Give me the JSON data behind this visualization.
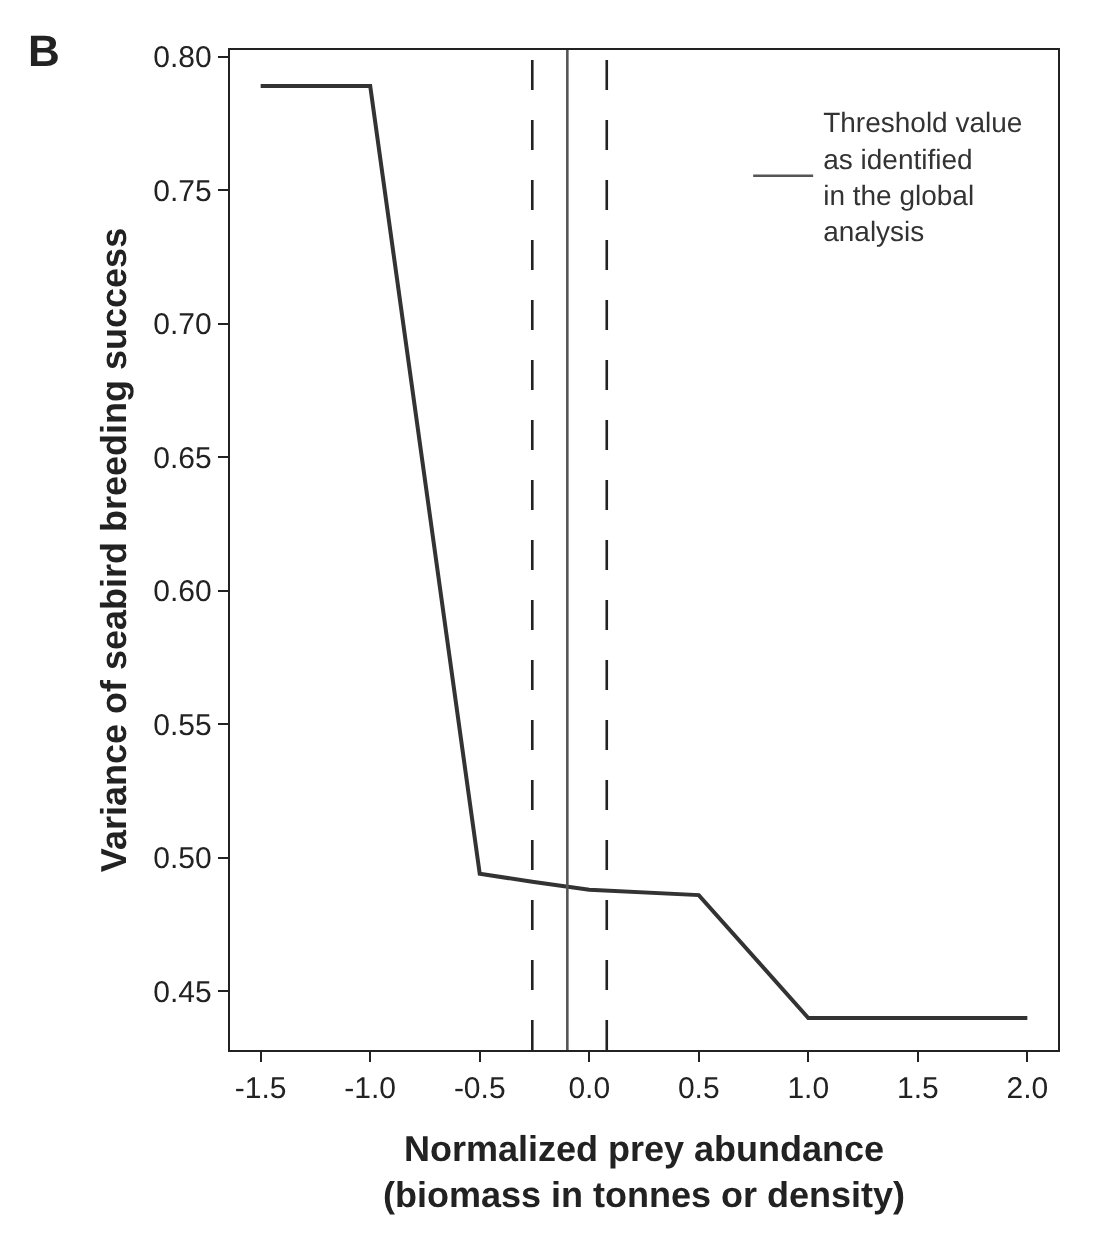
{
  "chart_data": {
    "type": "line",
    "xlabel": "Normalized prey abundance\n(biomass in tonnes or density)",
    "ylabel": "Variance of seabird breeding success",
    "annotations": [
      "B"
    ],
    "x": [
      -1.5,
      -1.0,
      -0.5,
      -0.26,
      0.0,
      0.5,
      1.0,
      2.0
    ],
    "series": [
      {
        "color": "#333333",
        "values": [
          0.789,
          0.789,
          0.494,
          0.491,
          0.488,
          0.486,
          0.44,
          0.44
        ]
      }
    ],
    "xlim": [
      -1.64,
      2.14
    ],
    "xticks": [
      {
        "value": -1.5,
        "label": "-1.5"
      },
      {
        "value": -1.0,
        "label": "-1.0"
      },
      {
        "value": -0.5,
        "label": "-0.5"
      },
      {
        "value": 0.0,
        "label": "0.0"
      },
      {
        "value": 0.5,
        "label": "0.5"
      },
      {
        "value": 1.0,
        "label": "1.0"
      },
      {
        "value": 1.5,
        "label": "1.5"
      },
      {
        "value": 2.0,
        "label": "2.0"
      }
    ],
    "ylim": [
      0.428,
      0.8025
    ],
    "yticks": [
      {
        "value": 0.45,
        "label": "0.45"
      },
      {
        "value": 0.5,
        "label": "0.50"
      },
      {
        "value": 0.55,
        "label": "0.55"
      },
      {
        "value": 0.6,
        "label": "0.60"
      },
      {
        "value": 0.65,
        "label": "0.65"
      },
      {
        "value": 0.7,
        "label": "0.70"
      },
      {
        "value": 0.75,
        "label": "0.75"
      },
      {
        "value": 0.8,
        "label": "0.80"
      }
    ],
    "ref_lines": [
      {
        "axis": "x",
        "value": -0.1,
        "label": "Threshold value\nas identified\nin the global\nanalysis",
        "color": "#555555",
        "line_style": "solid"
      },
      {
        "axis": "x",
        "value": -0.26,
        "color": "#222222",
        "line_style": "dashed"
      },
      {
        "axis": "x",
        "value": 0.08,
        "color": "#222222",
        "line_style": "dashed"
      }
    ],
    "legend": "top right",
    "marker": "none",
    "line_style": "solid"
  }
}
